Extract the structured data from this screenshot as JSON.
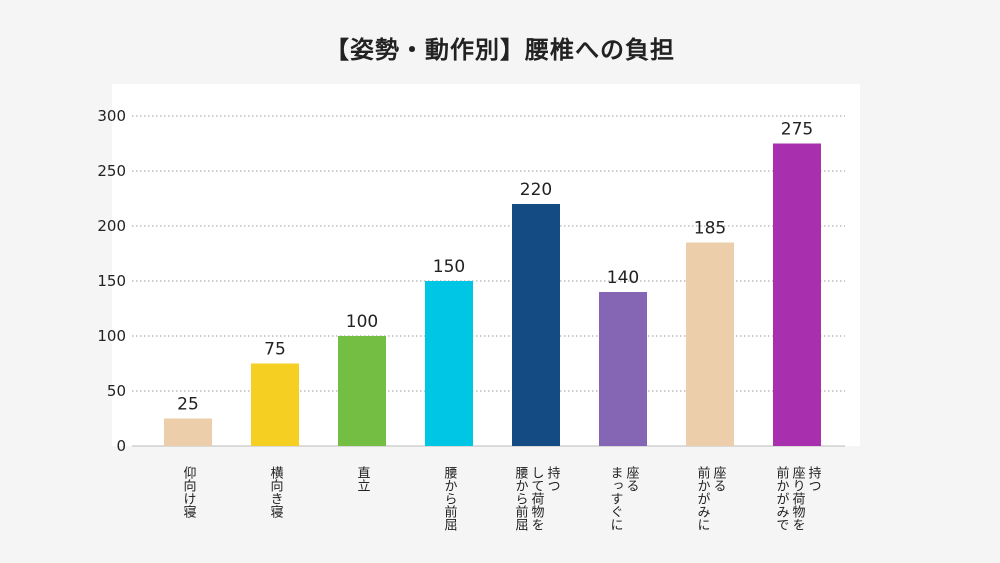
{
  "chart_data": {
    "type": "bar",
    "title": "【姿勢・動作別】腰椎への負担",
    "xlabel": "",
    "ylabel": "",
    "ylim": [
      0,
      300
    ],
    "yticks": [
      0,
      50,
      100,
      150,
      200,
      250,
      300
    ],
    "grid": true,
    "categories": [
      "仰向け寝",
      "横向き寝",
      "直立",
      "腰から前屈",
      "持つして荷物を腰から前屈",
      "座るまっすぐに",
      "座る前かがみに",
      "持つ座り荷物を前かがみで"
    ],
    "category_lines": [
      [
        "仰向け寝"
      ],
      [
        "横向き寝"
      ],
      [
        "直立"
      ],
      [
        "腰から前屈"
      ],
      [
        "持つ",
        "して荷物を",
        "腰から前屈"
      ],
      [
        "座る",
        "まっすぐに"
      ],
      [
        "座る",
        "前かがみに"
      ],
      [
        "持つ",
        "座り荷物を",
        "前かがみで"
      ]
    ],
    "values": [
      25,
      75,
      100,
      150,
      220,
      140,
      185,
      275
    ],
    "colors": [
      "#ecceaa",
      "#f5d023",
      "#74bf43",
      "#00c6e6",
      "#144b82",
      "#8466b4",
      "#ecceaa",
      "#a82fae"
    ]
  }
}
